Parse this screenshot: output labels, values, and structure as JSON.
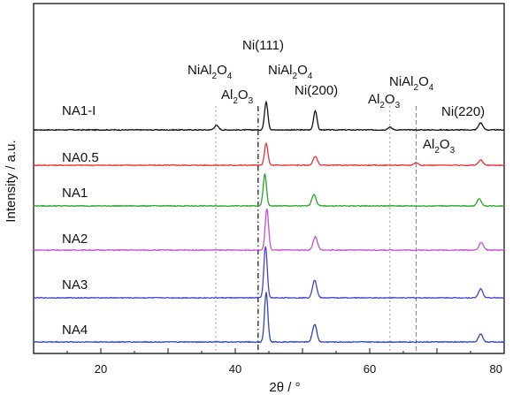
{
  "chart_data": {
    "type": "line",
    "xlabel": "2θ / °",
    "ylabel": "Intensity / a.u.",
    "xlim": [
      10,
      80
    ],
    "xticks": [
      "20",
      "40",
      "60",
      "80"
    ],
    "series": [
      {
        "name": "NA1-I",
        "color": "#111111",
        "peaks": [
          {
            "x": 37.2,
            "h": 5
          },
          {
            "x": 44.6,
            "h": 32
          },
          {
            "x": 51.9,
            "h": 22
          },
          {
            "x": 63.0,
            "h": 3
          },
          {
            "x": 76.5,
            "h": 8
          }
        ]
      },
      {
        "name": "NA0.5",
        "color": "#e8333a",
        "peaks": [
          {
            "x": 44.6,
            "h": 25
          },
          {
            "x": 51.9,
            "h": 10
          },
          {
            "x": 66.9,
            "h": 3
          },
          {
            "x": 76.5,
            "h": 6
          }
        ]
      },
      {
        "name": "NA1",
        "color": "#2aa52a",
        "peaks": [
          {
            "x": 44.4,
            "h": 36
          },
          {
            "x": 51.7,
            "h": 13
          },
          {
            "x": 76.3,
            "h": 8
          }
        ]
      },
      {
        "name": "NA2",
        "color": "#c850d0",
        "peaks": [
          {
            "x": 44.7,
            "h": 47
          },
          {
            "x": 51.9,
            "h": 15
          },
          {
            "x": 76.6,
            "h": 9
          }
        ]
      },
      {
        "name": "NA3",
        "color": "#4444cc",
        "peaks": [
          {
            "x": 44.5,
            "h": 58
          },
          {
            "x": 51.8,
            "h": 20
          },
          {
            "x": 76.5,
            "h": 10
          }
        ]
      },
      {
        "name": "NA4",
        "color": "#3344bb",
        "peaks": [
          {
            "x": 44.6,
            "h": 56
          },
          {
            "x": 51.8,
            "h": 20
          },
          {
            "x": 76.5,
            "h": 9
          }
        ]
      }
    ],
    "reference_lines": [
      {
        "x": 37.1,
        "style": "dotted",
        "color": "#9aa0aa"
      },
      {
        "x": 43.4,
        "style": "dash-dot",
        "color": "#111111"
      },
      {
        "x": 63.0,
        "style": "dotted",
        "color": "#9aa0aa"
      },
      {
        "x": 66.9,
        "style": "dashed",
        "color": "#7f8590"
      }
    ],
    "annotations": {
      "nial2o4_left": {
        "base": "NiAl",
        "sub1": "2",
        "mid": "O",
        "sub2": "4"
      },
      "al2o3_left": {
        "base": "Al",
        "sub1": "2",
        "mid": "O",
        "sub2": "3"
      },
      "ni111": "Ni(111)",
      "nial2o4_mid": {
        "base": "NiAl",
        "sub1": "2",
        "mid": "O",
        "sub2": "4"
      },
      "ni200": "Ni(200)",
      "al2o3_right": {
        "base": "Al",
        "sub1": "2",
        "mid": "O",
        "sub2": "3"
      },
      "nial2o4_right": {
        "base": "NiAl",
        "sub1": "2",
        "mid": "O",
        "sub2": "4"
      },
      "ni220": "Ni(220)",
      "al2o3_far": {
        "base": "Al",
        "sub1": "2",
        "mid": "O",
        "sub2": "3"
      }
    }
  }
}
